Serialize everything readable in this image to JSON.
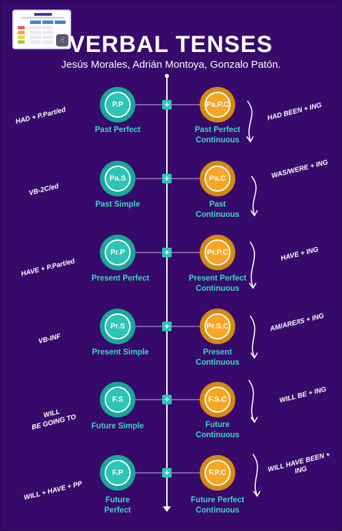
{
  "header": {
    "title": "VERBAL TENSES",
    "authors": "Jesús Morales, Adrián Montoya, Gonzalo Patón."
  },
  "colors": {
    "background": "#37096b",
    "simple": "#2ec4b6",
    "continuous": "#f6a623",
    "label": "#3fd6c6"
  },
  "rows": [
    {
      "left_formula": "HAD + P.Part/ed",
      "simple_abbr": "P.P",
      "simple_label": "Past Perfect",
      "continuous_abbr": "Pa.P.C",
      "continuous_label_1": "Past Perfect",
      "continuous_label_2": "Continuous",
      "right_formula": "HAD BEEN + ING"
    },
    {
      "left_formula": "VB-2C/ed",
      "simple_abbr": "Pa.S",
      "simple_label": "Past Simple",
      "continuous_abbr": "Pa.C",
      "continuous_label_1": "Past",
      "continuous_label_2": "Continuous",
      "right_formula": "WAS/WERE + ING"
    },
    {
      "left_formula": "HAVE + P.Part/ed",
      "simple_abbr": "Pr.P",
      "simple_label": "Present Perfect",
      "continuous_abbr": "Pr.P.C",
      "continuous_label_1": "Present Perfect",
      "continuous_label_2": "Continuous",
      "right_formula": "HAVE + ING"
    },
    {
      "left_formula": "VB-INF",
      "simple_abbr": "Pr.S",
      "simple_label": "Present Simple",
      "continuous_abbr": "Pr.S.C",
      "continuous_label_1": "Present",
      "continuous_label_2": "Continuous",
      "right_formula": "AM/ARE/IS + ING"
    },
    {
      "left_formula_1": "WILL",
      "left_formula_2": "BE GOING TO",
      "simple_abbr": "F.S",
      "simple_label": "Future Simple",
      "continuous_abbr": "F.S.C",
      "continuous_label_1": "Future",
      "continuous_label_2": "Continuous",
      "right_formula": "WILL BE + ING"
    },
    {
      "left_formula": "WILL + HAVE + PP",
      "simple_abbr": "F.P",
      "simple_label_1": "Future",
      "simple_label_2": "Perfect",
      "continuous_abbr": "F.P.C",
      "continuous_label_1": "Future Perfect",
      "continuous_label_2": "Continuous",
      "right_formula_1": "WILL HAVE BEEN +",
      "right_formula_2": "ING"
    }
  ],
  "icons": {
    "thumbnail": "worksheet-thumbnail-icon",
    "tap": "tap-hand-icon",
    "connector": "plus-icon",
    "arrow": "curved-arrow-icon"
  }
}
